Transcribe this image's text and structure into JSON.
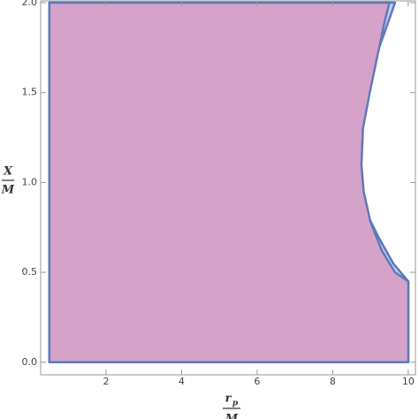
{
  "chart_data": {
    "type": "region",
    "xlabel": {
      "numerator": "r",
      "subscript": "p",
      "denominator": "M"
    },
    "ylabel": {
      "numerator": "X",
      "denominator": "M"
    },
    "xlim": [
      0.27,
      10.19
    ],
    "ylim": [
      -0.07,
      2.01
    ],
    "xticks": [
      2,
      4,
      6,
      8,
      10
    ],
    "yticks": [
      {
        "value": 0,
        "label": "0.0"
      },
      {
        "value": 0.5,
        "label": "0.5"
      },
      {
        "value": 1,
        "label": "1.0"
      },
      {
        "value": 1.5,
        "label": "1.5"
      },
      {
        "value": 2,
        "label": "2.0"
      }
    ],
    "edge_color": "#5d7ab8",
    "series": [
      {
        "color": "#c5c9f2",
        "x": [
          0.5,
          10,
          10,
          9.6,
          9.2,
          8.85,
          8.6,
          8.5,
          8.55,
          8.75,
          9.05,
          9.35,
          9.65,
          0.5
        ],
        "values": [
          0,
          0,
          0.45,
          0.55,
          0.7,
          0.85,
          1.0,
          1.1,
          1.25,
          1.45,
          1.65,
          1.82,
          2.0,
          2.0
        ]
      },
      {
        "color": "#d5a3c9",
        "x": [
          0.5,
          10,
          10,
          9.65,
          9.3,
          9.0,
          8.82,
          8.76,
          8.8,
          8.98,
          9.18,
          9.38,
          9.5,
          0.5
        ],
        "values": [
          0,
          0,
          0.45,
          0.5,
          0.62,
          0.78,
          0.95,
          1.1,
          1.3,
          1.5,
          1.7,
          1.9,
          2.0,
          2.0
        ]
      }
    ]
  }
}
